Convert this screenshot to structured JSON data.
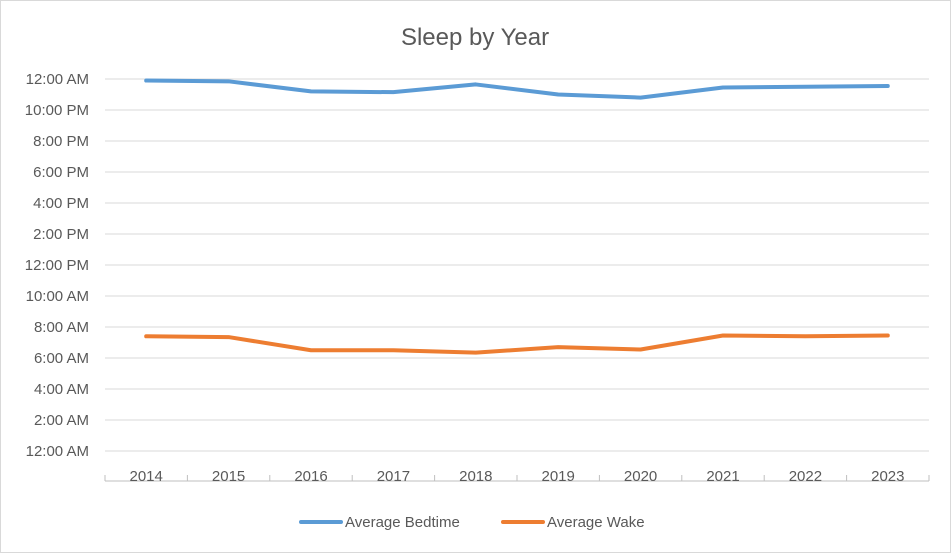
{
  "chart_data": {
    "type": "line",
    "title": "Sleep by Year",
    "xlabel": "",
    "ylabel": "",
    "categories": [
      "2014",
      "2015",
      "2016",
      "2017",
      "2018",
      "2019",
      "2020",
      "2021",
      "2022",
      "2023"
    ],
    "y_ticks": [
      "12:00 AM",
      "2:00 AM",
      "4:00 AM",
      "6:00 AM",
      "8:00 AM",
      "10:00 AM",
      "12:00 PM",
      "2:00 PM",
      "4:00 PM",
      "6:00 PM",
      "8:00 PM",
      "10:00 PM",
      "12:00 AM"
    ],
    "ylim_hours": [
      0,
      24
    ],
    "grid": true,
    "legend_position": "bottom",
    "series": [
      {
        "name": "Average Bedtime",
        "color": "#5b9bd5",
        "values_hours": [
          23.9,
          23.85,
          23.2,
          23.15,
          23.65,
          23.0,
          22.8,
          23.45,
          23.5,
          23.55
        ]
      },
      {
        "name": "Average Wake",
        "color": "#ed7d31",
        "values_hours": [
          7.4,
          7.35,
          6.5,
          6.5,
          6.35,
          6.7,
          6.55,
          7.45,
          7.4,
          7.45
        ]
      }
    ]
  }
}
